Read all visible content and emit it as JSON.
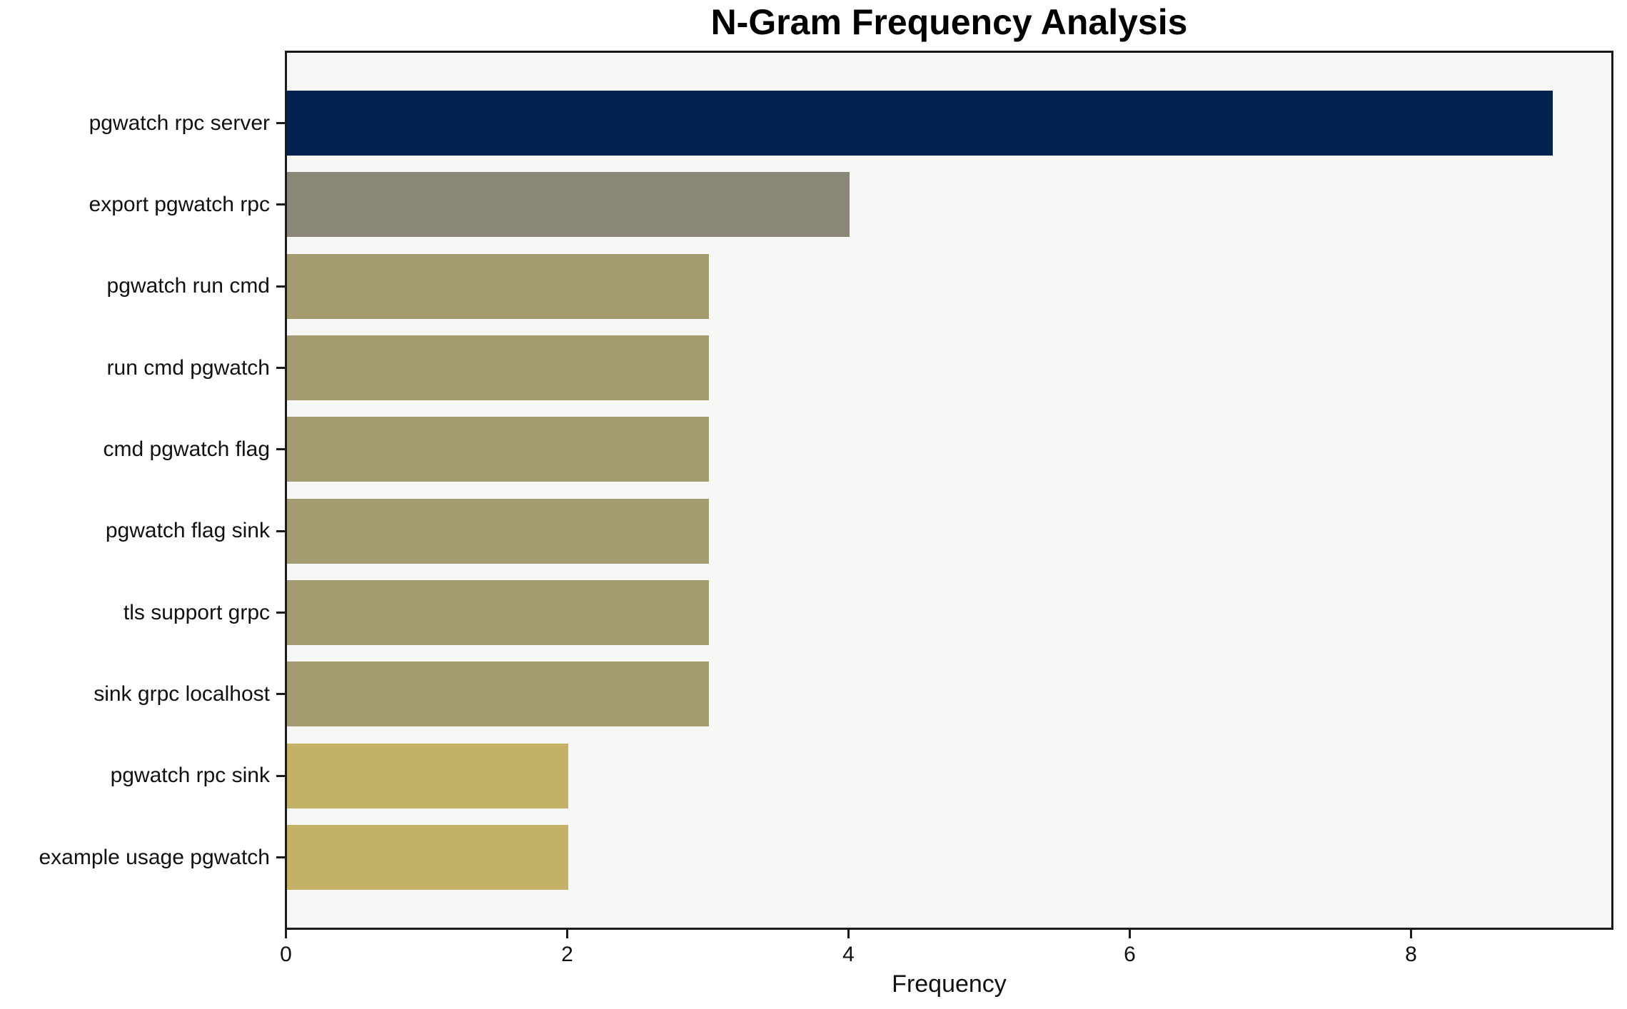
{
  "chart_data": {
    "type": "bar",
    "orientation": "horizontal",
    "title": "N-Gram Frequency Analysis",
    "xlabel": "Frequency",
    "ylabel": "",
    "categories": [
      "pgwatch rpc server",
      "export pgwatch rpc",
      "pgwatch run cmd",
      "run cmd pgwatch",
      "cmd pgwatch flag",
      "pgwatch flag sink",
      "tls support grpc",
      "sink grpc localhost",
      "pgwatch rpc sink",
      "example usage pgwatch"
    ],
    "values": [
      9,
      4,
      3,
      3,
      3,
      3,
      3,
      3,
      2,
      2
    ],
    "bar_colors": [
      "#02234f",
      "#8a8776",
      "#a49b70",
      "#a49b70",
      "#a49b70",
      "#a49b70",
      "#a49b70",
      "#a49b70",
      "#c3b266",
      "#c3b266"
    ],
    "xticks": [
      0,
      2,
      4,
      6,
      8
    ],
    "xlim": [
      0,
      9.45
    ],
    "grid": false,
    "legend": "none",
    "plot_background": "#f7f7f6",
    "figure_background": "#ffffff",
    "axis_color": "#1a1a1a"
  }
}
